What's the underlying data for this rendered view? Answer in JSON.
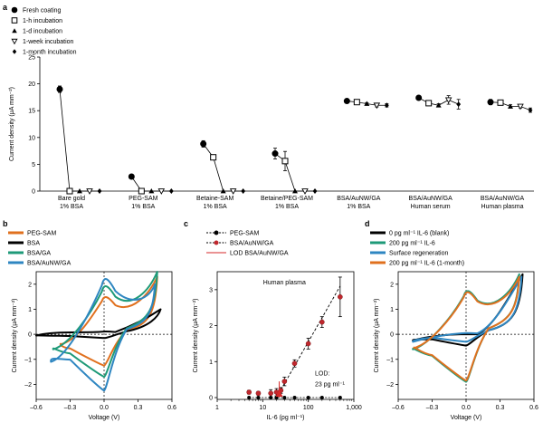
{
  "chart_data": [
    {
      "panel": "a",
      "type": "scatter",
      "ylabel": "Current density (μA mm⁻²)",
      "ylim": [
        0,
        25
      ],
      "yticks": [
        0,
        5,
        10,
        15,
        20,
        25
      ],
      "legend_position": "top-left",
      "series": [
        {
          "name": "Fresh coating",
          "marker": "filled-circle"
        },
        {
          "name": "1-h incubation",
          "marker": "open-square"
        },
        {
          "name": "1-d incubation",
          "marker": "filled-triangle"
        },
        {
          "name": "1-week incubation",
          "marker": "open-triangle-down"
        },
        {
          "name": "1-month incubation",
          "marker": "filled-diamond"
        }
      ],
      "groups": [
        {
          "line1": "Bare gold",
          "line2": "1% BSA",
          "values": [
            19.0,
            0,
            0,
            0,
            0
          ],
          "errors": [
            0.6,
            0,
            0,
            0,
            0
          ]
        },
        {
          "line1": "PEG-SAM",
          "line2": "1% BSA",
          "values": [
            2.7,
            0,
            0,
            0,
            0
          ],
          "errors": [
            0,
            0,
            0,
            0,
            0
          ]
        },
        {
          "line1": "Betaine-SAM",
          "line2": "1% BSA",
          "values": [
            8.8,
            6.3,
            0,
            0,
            0
          ],
          "errors": [
            0.6,
            0.3,
            0,
            0,
            0
          ]
        },
        {
          "line1": "Betaine/PEG-SAM",
          "line2": "1% BSA",
          "values": [
            7.0,
            5.6,
            0,
            0,
            0
          ],
          "errors": [
            1.0,
            1.8,
            0,
            0,
            0
          ]
        },
        {
          "line1": "BSA/AuNW/GA",
          "line2": "1% BSA",
          "values": [
            16.8,
            16.6,
            16.3,
            16.0,
            16.0
          ],
          "errors": [
            0.2,
            0.3,
            0.2,
            0.3,
            0.3
          ]
        },
        {
          "line1": "BSA/AuNW/GA",
          "line2": "Human serum",
          "values": [
            17.4,
            16.4,
            16.0,
            17.0,
            16.2
          ],
          "errors": [
            0.3,
            0.4,
            0.3,
            0.8,
            0.9
          ]
        },
        {
          "line1": "BSA/AuNW/GA",
          "line2": "Human plasma",
          "values": [
            16.6,
            16.5,
            15.8,
            15.8,
            15.1
          ],
          "errors": [
            0.5,
            0.4,
            0.3,
            0.3,
            0.4
          ]
        }
      ]
    },
    {
      "panel": "b",
      "type": "line",
      "xlabel": "Voltage (V)",
      "ylabel": "Current density (μA mm⁻²)",
      "xlim": [
        -0.6,
        0.6
      ],
      "ylim": [
        -2.6,
        2.5
      ],
      "xticks": [
        -0.6,
        -0.3,
        0.0,
        0.3,
        0.6
      ],
      "xtick_labels": [
        "–0.6",
        "–0.3",
        "0.0",
        "0.3",
        "0.6"
      ],
      "yticks": [
        -2,
        -1,
        0,
        1,
        2
      ],
      "ytick_labels": [
        "–2",
        "–1",
        "0",
        "1",
        "2"
      ],
      "legend_position": "top-left",
      "series": [
        {
          "name": "PEG-SAM",
          "color": "#e0701e",
          "peak_anodic": 1.55,
          "peak_cathodic": -1.25,
          "xmin": -0.38,
          "xmax": 0.47,
          "tail_top": 2.3,
          "tail_bottom": 0.4,
          "vtx_low": -0.4
        },
        {
          "name": "BSA",
          "color": "#000000",
          "peak_anodic": 0.12,
          "peak_cathodic": -0.15,
          "xmin": -0.6,
          "xmax": 0.5,
          "tail_top": 1.0,
          "tail_bottom": 0.3,
          "vtx_low": -0.05
        },
        {
          "name": "BSA/GA",
          "color": "#1e9a78",
          "peak_anodic": 2.0,
          "peak_cathodic": -1.7,
          "xmin": -0.45,
          "xmax": 0.47,
          "tail_top": 2.5,
          "tail_bottom": 0.6,
          "vtx_low": -0.6
        },
        {
          "name": "BSA/AuNW/GA",
          "color": "#2e86c1",
          "peak_anodic": 2.3,
          "peak_cathodic": -2.25,
          "xmin": -0.47,
          "xmax": 0.45,
          "tail_top": 2.0,
          "tail_bottom": 0.5,
          "vtx_low": -1.1
        }
      ]
    },
    {
      "panel": "c",
      "type": "scatter",
      "xlabel": "IL-6 (pg ml⁻¹)",
      "ylabel": "Current density (μA mm⁻²)",
      "xscale": "log",
      "xlim": [
        1,
        1000
      ],
      "ylim": [
        -0.05,
        3.5
      ],
      "xticks": [
        1,
        10,
        100,
        1000
      ],
      "xtick_labels": [
        "1",
        "10",
        "100",
        "1,000"
      ],
      "yticks": [
        0,
        1,
        2,
        3
      ],
      "annotation": "Human plasma",
      "lod_label": [
        "LOD:",
        "23 pg ml⁻¹"
      ],
      "lod_x": 23,
      "legend_position": "top-left",
      "series": [
        {
          "name": "PEG-SAM",
          "color": "#000000",
          "x": [
            5,
            8,
            15,
            20,
            30,
            50,
            100,
            200,
            500
          ],
          "y": [
            0,
            0,
            0,
            0,
            0,
            0,
            0,
            0,
            0
          ]
        },
        {
          "name": "BSA/AuNW/GA",
          "color": "#c0272d",
          "x": [
            5,
            8,
            15,
            20,
            25,
            30,
            50,
            100,
            200,
            500
          ],
          "y": [
            0.15,
            0.12,
            0.12,
            0.15,
            0.2,
            0.45,
            0.95,
            1.5,
            2.1,
            2.8
          ],
          "errors": [
            0.05,
            0.05,
            0.1,
            0.1,
            0.08,
            0.12,
            0.1,
            0.15,
            0.15,
            0.55
          ]
        },
        {
          "name": "LOD BSA/AuNW/GA",
          "color": "#d62728"
        }
      ]
    },
    {
      "panel": "d",
      "type": "line",
      "xlabel": "Voltage (V)",
      "ylabel": "Current density (μA mm⁻²)",
      "xlim": [
        -0.6,
        0.6
      ],
      "ylim": [
        -2.6,
        2.5
      ],
      "xticks": [
        -0.6,
        -0.3,
        0.0,
        0.3,
        0.6
      ],
      "xtick_labels": [
        "–0.6",
        "–0.3",
        "0.0",
        "0.3",
        "0.6"
      ],
      "yticks": [
        -2,
        -1,
        0,
        1,
        2
      ],
      "ytick_labels": [
        "–2",
        "–1",
        "0",
        "1",
        "2"
      ],
      "legend_position": "top-left",
      "series": [
        {
          "name": "0 pg ml⁻¹ IL-6 (blank)",
          "color": "#000000",
          "peak_anodic": 0.0,
          "peak_cathodic": -0.45,
          "xmin": -0.47,
          "xmax": 0.5,
          "tail_top": 2.4,
          "tail_bottom": 0.4,
          "vtx_low": -0.25
        },
        {
          "name": "200 pg ml⁻¹ IL-6",
          "color": "#1e9a78",
          "peak_anodic": 1.8,
          "peak_cathodic": -1.9,
          "xmin": -0.47,
          "xmax": 0.47,
          "tail_top": 2.4,
          "tail_bottom": 0.6,
          "vtx_low": -0.6
        },
        {
          "name": "Surface regeneration",
          "color": "#2e86c1",
          "peak_anodic": 0.05,
          "peak_cathodic": -0.3,
          "xmin": -0.47,
          "xmax": 0.49,
          "tail_top": 2.3,
          "tail_bottom": 0.4,
          "vtx_low": -0.3
        },
        {
          "name": "200 pg ml⁻¹ IL-6 (1-month)",
          "color": "#e0701e",
          "peak_anodic": 1.75,
          "peak_cathodic": -1.85,
          "xmin": -0.46,
          "xmax": 0.47,
          "tail_top": 2.3,
          "tail_bottom": 0.6,
          "vtx_low": -0.55
        }
      ]
    }
  ]
}
